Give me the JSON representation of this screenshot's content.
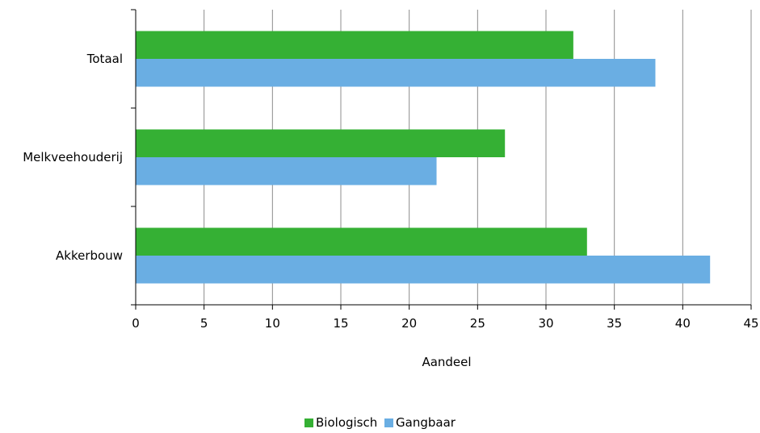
{
  "chart_data": {
    "type": "bar",
    "orientation": "horizontal",
    "categories": [
      "Totaal",
      "Melkveehouderij",
      "Akkerbouw"
    ],
    "series": [
      {
        "name": "Biologisch",
        "color": "#35b034",
        "values": [
          32,
          27,
          33
        ]
      },
      {
        "name": "Gangbaar",
        "color": "#6aaee3",
        "values": [
          38,
          22,
          42
        ]
      }
    ],
    "xlabel": "Aandeel",
    "ylabel": "",
    "xlim": [
      0,
      45
    ],
    "xticks": [
      0,
      5,
      10,
      15,
      20,
      25,
      30,
      35,
      40,
      45
    ],
    "grid": "vertical",
    "legend_position": "bottom"
  }
}
